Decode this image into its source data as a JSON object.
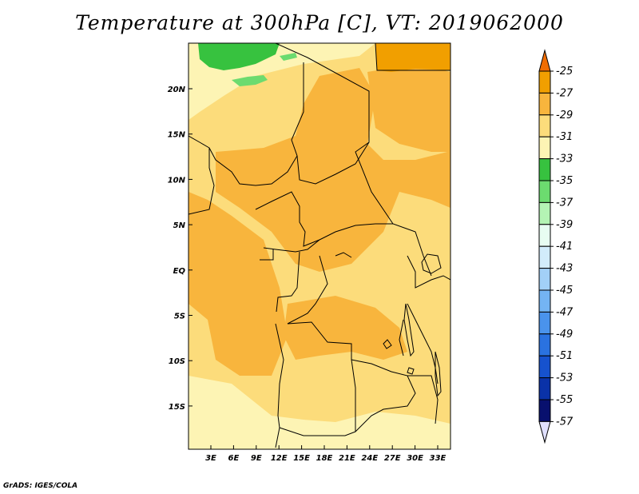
{
  "title": "Temperature at 300hPa [C], VT: 2019062000",
  "credit": "GrADS: IGES/COLA",
  "axes": {
    "lon_labels": [
      "3E",
      "6E",
      "9E",
      "12E",
      "15E",
      "18E",
      "21E",
      "24E",
      "27E",
      "30E",
      "33E"
    ],
    "lat_labels": [
      "20N",
      "15N",
      "10N",
      "5N",
      "EQ",
      "5S",
      "10S",
      "15S"
    ]
  },
  "colorbar": {
    "levels": [
      "-25",
      "-27",
      "-29",
      "-31",
      "-33",
      "-35",
      "-37",
      "-39",
      "-41",
      "-43",
      "-45",
      "-47",
      "-49",
      "-51",
      "-53",
      "-55",
      "-57"
    ],
    "colors": [
      "#f06d02",
      "#f19f00",
      "#f8b53d",
      "#fcdc7b",
      "#fdf4b4",
      "#37c23f",
      "#6cdb6f",
      "#b4f4b4",
      "#e8fdf2",
      "#d2ecfb",
      "#a2d0f7",
      "#74b4f3",
      "#4a93ec",
      "#2a72e0",
      "#1652ce",
      "#0a32a8",
      "#08106e",
      "#e0e0ff"
    ]
  },
  "colors": {
    "land_base": "#fcdc7b",
    "warm": "#f8b53d",
    "warmer": "#f19f00",
    "cool": "#fdf4b4",
    "green": "#37c23f",
    "light_green": "#6cdb6f"
  }
}
